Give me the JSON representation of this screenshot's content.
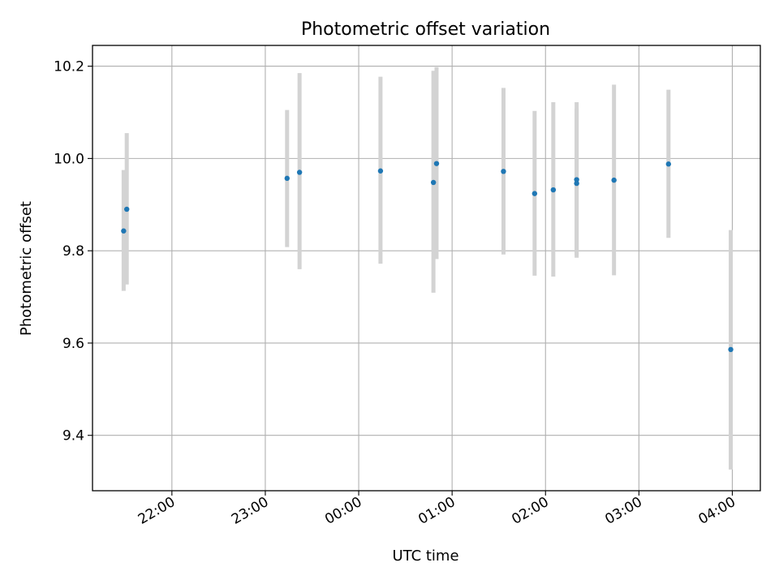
{
  "chart_data": {
    "type": "scatter",
    "title": "Photometric offset variation",
    "xlabel": "UTC time",
    "ylabel": "Photometric offset",
    "x_axis_type": "time",
    "x_range": [
      "21:09",
      "04:18"
    ],
    "ylim": [
      9.28,
      10.245
    ],
    "x_ticks": [
      "22:00",
      "23:00",
      "00:00",
      "01:00",
      "02:00",
      "03:00",
      "04:00"
    ],
    "y_ticks": [
      9.4,
      9.6,
      9.8,
      10.0,
      10.2
    ],
    "y_tick_labels": [
      "9.4",
      "9.6",
      "9.8",
      "10.0",
      "10.2"
    ],
    "grid": true,
    "marker_color": "#1f77b4",
    "errorbar_color": "#d3d3d3",
    "points": [
      {
        "time": "21:29",
        "offset": 9.843,
        "err_low": 9.713,
        "err_high": 9.975
      },
      {
        "time": "21:31",
        "offset": 9.89,
        "err_low": 9.727,
        "err_high": 10.055
      },
      {
        "time": "23:14",
        "offset": 9.957,
        "err_low": 9.808,
        "err_high": 10.105
      },
      {
        "time": "23:22",
        "offset": 9.97,
        "err_low": 9.76,
        "err_high": 10.185
      },
      {
        "time": "00:14",
        "offset": 9.973,
        "err_low": 9.772,
        "err_high": 10.177
      },
      {
        "time": "00:48",
        "offset": 9.948,
        "err_low": 9.709,
        "err_high": 10.19
      },
      {
        "time": "00:50",
        "offset": 9.989,
        "err_low": 9.782,
        "err_high": 10.198
      },
      {
        "time": "01:33",
        "offset": 9.972,
        "err_low": 9.792,
        "err_high": 10.153
      },
      {
        "time": "01:53",
        "offset": 9.924,
        "err_low": 9.746,
        "err_high": 10.103
      },
      {
        "time": "02:05",
        "offset": 9.932,
        "err_low": 9.744,
        "err_high": 10.122
      },
      {
        "time": "02:20",
        "offset": 9.954,
        "err_low": 9.79,
        "err_high": 10.122
      },
      {
        "time": "02:20",
        "offset": 9.946,
        "err_low": 9.785,
        "err_high": 10.108
      },
      {
        "time": "02:44",
        "offset": 9.953,
        "err_low": 9.747,
        "err_high": 10.16
      },
      {
        "time": "03:19",
        "offset": 9.988,
        "err_low": 9.828,
        "err_high": 10.149
      },
      {
        "time": "03:59",
        "offset": 9.586,
        "err_low": 9.326,
        "err_high": 9.845
      }
    ]
  }
}
